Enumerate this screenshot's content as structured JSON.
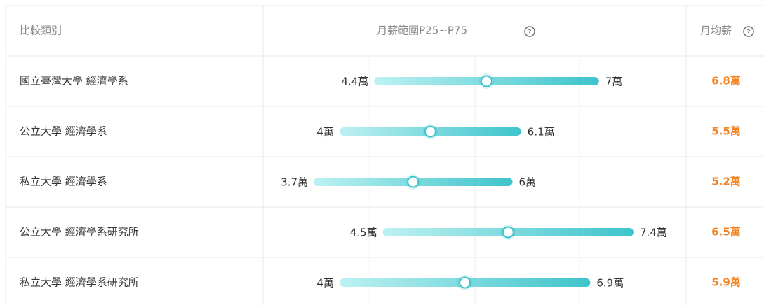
{
  "table": {
    "headers": [
      "比較類別",
      "月薪範圍P25~P75",
      "月均薪"
    ],
    "rows": [
      {
        "category": "國立臺灣大學 經濟學系",
        "p25": {
          "value": 4.4,
          "label": "4.4萬"
        },
        "p75": {
          "value": 7,
          "label": "7萬"
        },
        "average": "6.8萬"
      },
      {
        "category": "公立大學 經濟學系",
        "p25": {
          "value": 4,
          "label": "4萬"
        },
        "p75": {
          "value": 6.1,
          "label": "6.1萬"
        },
        "average": "5.5萬"
      },
      {
        "category": "私立大學 經濟學系",
        "p25": {
          "value": 3.7,
          "label": "3.7萬"
        },
        "p75": {
          "value": 6,
          "label": "6萬"
        },
        "average": "5.2萬"
      },
      {
        "category": "公立大學 經濟學系研究所",
        "p25": {
          "value": 4.5,
          "label": "4.5萬"
        },
        "p75": {
          "value": 7.4,
          "label": "7.4萬"
        },
        "average": "6.5萬"
      },
      {
        "category": "私立大學 經濟學系研究所",
        "p25": {
          "value": 4,
          "label": "4萬"
        },
        "p75": {
          "value": 6.9,
          "label": "6.9萬"
        },
        "average": "5.9萬"
      }
    ]
  }
}
